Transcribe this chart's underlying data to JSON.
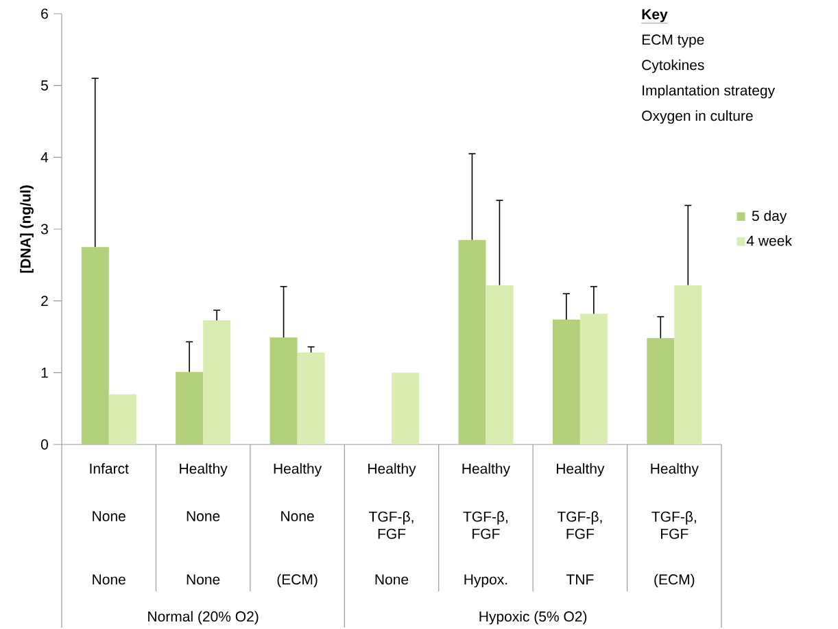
{
  "chart_data": {
    "type": "bar",
    "ylabel": "[DNA] (ng/ul)",
    "categories": [
      "Infarct",
      "Healthy",
      "Healthy",
      "Healthy",
      "Healthy",
      "Healthy",
      "Healthy"
    ],
    "series": [
      {
        "name": "5 day",
        "color": "#b3d07a",
        "values": [
          2.75,
          1.01,
          1.49,
          null,
          2.85,
          1.74,
          1.48
        ],
        "errors": [
          [
            2.75,
            5.1
          ],
          [
            1.01,
            1.43
          ],
          [
            1.49,
            2.2
          ],
          null,
          [
            2.85,
            4.05
          ],
          [
            1.74,
            2.1
          ],
          [
            1.48,
            1.78
          ]
        ]
      },
      {
        "name": "4 week",
        "color": "#d9ecb2",
        "values": [
          0.7,
          1.73,
          1.28,
          1.0,
          2.22,
          1.82,
          2.22
        ],
        "errors": [
          null,
          [
            1.73,
            1.87
          ],
          [
            1.28,
            1.36
          ],
          null,
          [
            2.22,
            3.4
          ],
          [
            1.82,
            2.2
          ],
          [
            2.22,
            3.33
          ]
        ]
      }
    ],
    "ylim": [
      0,
      6
    ],
    "yticks": [
      0,
      1,
      2,
      3,
      4,
      5,
      6
    ],
    "grid": false,
    "legend": "right",
    "annotations": [
      "None",
      "None",
      "None",
      "TGF-β, FGF",
      "TGF-β, FGF",
      "TGF-β, FGF",
      "TGF-β, FGF",
      "None",
      "None",
      "(ECM)",
      "None",
      "Hypox.",
      "TNF",
      "(ECM)",
      "Normal (20% O2)",
      "Hypoxic (5% O2)",
      "Key",
      "ECM type",
      "Cytokines",
      "Implantation strategy",
      "Oxygen in culture"
    ]
  }
}
